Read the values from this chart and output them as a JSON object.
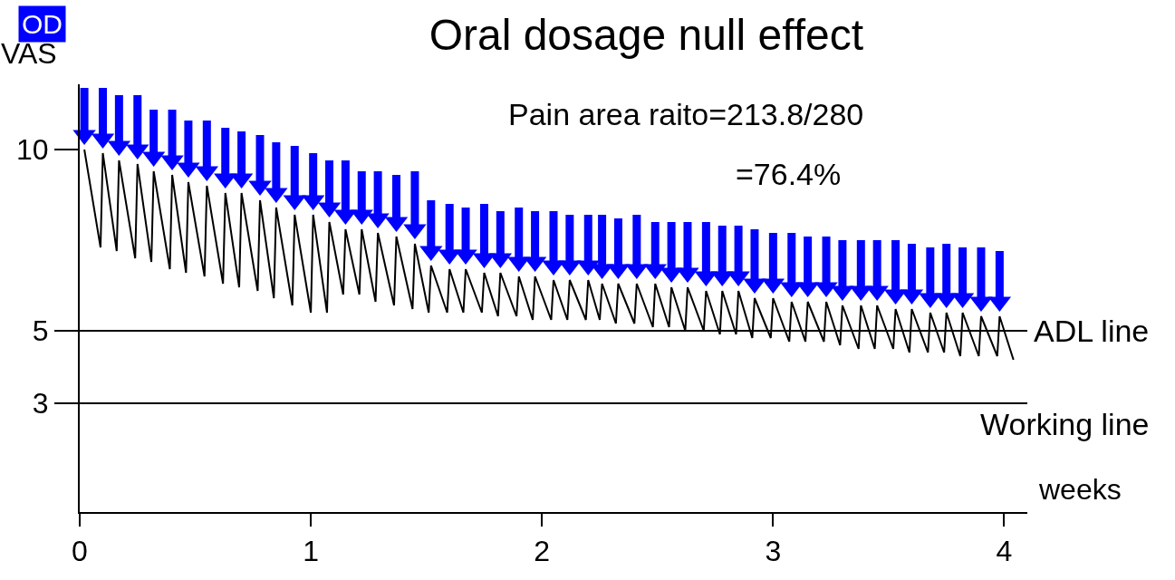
{
  "chart_data": {
    "type": "line",
    "title": "Oral dosage null effect",
    "xlabel": "weeks",
    "ylabel": "VAS",
    "annotations": [
      "OD",
      "Pain area raito=213.8/280",
      "=76.4%"
    ],
    "xlim": [
      0,
      4.1
    ],
    "ylim": [
      0,
      11.8
    ],
    "xticks": [
      0,
      1,
      2,
      3,
      4
    ],
    "yticks": [
      3,
      5,
      10
    ],
    "grid": false,
    "ref_lines": [
      {
        "axis": "y",
        "value": 5,
        "label": "ADL line",
        "color": "#000000"
      },
      {
        "axis": "y",
        "value": 3,
        "label": "Working line",
        "color": "#000000"
      }
    ],
    "series": [
      {
        "type": "line",
        "color": "#000000",
        "marker": "none",
        "line_style": "solid",
        "x": [
          0.02,
          0.09,
          0.1,
          0.16,
          0.17,
          0.24,
          0.25,
          0.31,
          0.32,
          0.39,
          0.4,
          0.46,
          0.47,
          0.54,
          0.55,
          0.62,
          0.63,
          0.69,
          0.7,
          0.77,
          0.78,
          0.84,
          0.85,
          0.92,
          0.93,
          1.0,
          1.01,
          1.07,
          1.08,
          1.14,
          1.15,
          1.21,
          1.22,
          1.28,
          1.29,
          1.36,
          1.37,
          1.44,
          1.45,
          1.51,
          1.52,
          1.59,
          1.6,
          1.66,
          1.67,
          1.74,
          1.75,
          1.81,
          1.82,
          1.89,
          1.9,
          1.96,
          1.97,
          2.04,
          2.05,
          2.11,
          2.12,
          2.19,
          2.2,
          2.25,
          2.26,
          2.32,
          2.33,
          2.4,
          2.41,
          2.48,
          2.49,
          2.55,
          2.56,
          2.62,
          2.63,
          2.7,
          2.71,
          2.77,
          2.78,
          2.84,
          2.85,
          2.91,
          2.92,
          2.99,
          3.0,
          3.07,
          3.08,
          3.14,
          3.15,
          3.22,
          3.23,
          3.29,
          3.3,
          3.37,
          3.38,
          3.44,
          3.45,
          3.52,
          3.53,
          3.59,
          3.6,
          3.67,
          3.68,
          3.74,
          3.75,
          3.81,
          3.82,
          3.89,
          3.9,
          3.97,
          3.98,
          4.04
        ],
        "values": [
          10.0,
          7.3,
          9.9,
          7.2,
          9.7,
          7.0,
          9.6,
          6.9,
          9.4,
          6.7,
          9.3,
          6.6,
          9.1,
          6.5,
          9.0,
          6.3,
          8.8,
          6.2,
          8.8,
          6.1,
          8.6,
          5.9,
          8.4,
          5.7,
          8.2,
          5.5,
          8.2,
          5.5,
          8.0,
          6.0,
          7.8,
          6.0,
          7.8,
          5.8,
          7.7,
          5.7,
          7.6,
          5.6,
          7.4,
          5.5,
          6.8,
          5.5,
          6.7,
          5.5,
          6.7,
          5.5,
          6.6,
          5.4,
          6.6,
          5.4,
          6.5,
          5.3,
          6.5,
          5.3,
          6.4,
          5.3,
          6.4,
          5.3,
          6.4,
          5.3,
          6.3,
          5.2,
          6.3,
          5.2,
          6.3,
          5.1,
          6.3,
          5.1,
          6.2,
          5.0,
          6.2,
          5.0,
          6.1,
          4.9,
          6.1,
          4.9,
          6.1,
          4.8,
          5.9,
          4.8,
          5.9,
          4.7,
          5.8,
          4.7,
          5.8,
          4.7,
          5.8,
          4.6,
          5.7,
          4.5,
          5.7,
          4.5,
          5.7,
          4.5,
          5.6,
          4.4,
          5.6,
          4.4,
          5.5,
          4.4,
          5.5,
          4.3,
          5.5,
          4.3,
          5.4,
          4.3,
          5.4,
          4.2
        ]
      },
      {
        "type": "scatter",
        "color": "#0000ff",
        "marker": "triangle",
        "x": [
          0.02,
          0.1,
          0.17,
          0.25,
          0.32,
          0.4,
          0.47,
          0.55,
          0.63,
          0.7,
          0.78,
          0.85,
          0.93,
          1.01,
          1.08,
          1.15,
          1.22,
          1.29,
          1.37,
          1.45,
          1.52,
          1.6,
          1.67,
          1.75,
          1.82,
          1.9,
          1.97,
          2.05,
          2.12,
          2.2,
          2.26,
          2.33,
          2.41,
          2.49,
          2.56,
          2.63,
          2.71,
          2.78,
          2.85,
          2.92,
          3.0,
          3.08,
          3.15,
          3.23,
          3.3,
          3.38,
          3.45,
          3.53,
          3.6,
          3.68,
          3.75,
          3.82,
          3.9,
          3.98
        ],
        "values": [
          10.4,
          10.3,
          10.1,
          10.0,
          9.8,
          9.7,
          9.5,
          9.4,
          9.2,
          9.2,
          9.0,
          8.8,
          8.6,
          8.6,
          8.4,
          8.2,
          8.2,
          8.1,
          8.0,
          7.8,
          7.2,
          7.1,
          7.1,
          7.0,
          7.0,
          6.9,
          6.9,
          6.8,
          6.8,
          6.8,
          6.7,
          6.7,
          6.7,
          6.7,
          6.6,
          6.6,
          6.5,
          6.5,
          6.5,
          6.3,
          6.3,
          6.2,
          6.2,
          6.2,
          6.1,
          6.1,
          6.1,
          6.0,
          6.0,
          5.9,
          5.9,
          5.9,
          5.8,
          5.8
        ],
        "line_style": "solid"
      },
      {
        "type": "line",
        "color": "#0000ff",
        "marker": "none",
        "line_style": "solid",
        "x": [
          0.02,
          0.02,
          null,
          0.1,
          0.1,
          null,
          0.17,
          0.17,
          null,
          0.25,
          0.25,
          null,
          0.32,
          0.32,
          null,
          0.4,
          0.4,
          null,
          0.47,
          0.47,
          null,
          0.55,
          0.55,
          null,
          0.63,
          0.63,
          null,
          0.7,
          0.7,
          null,
          0.78,
          0.78,
          null,
          0.85,
          0.85,
          null,
          0.93,
          0.93,
          null,
          1.01,
          1.01,
          null,
          1.08,
          1.08,
          null,
          1.15,
          1.15,
          null,
          1.22,
          1.22,
          null,
          1.29,
          1.29,
          null,
          1.37,
          1.37,
          null,
          1.45,
          1.45,
          null,
          1.52,
          1.52,
          null,
          1.6,
          1.6,
          null,
          1.67,
          1.67,
          null,
          1.75,
          1.75,
          null,
          1.82,
          1.82,
          null,
          1.9,
          1.9,
          null,
          1.97,
          1.97,
          null,
          2.05,
          2.05,
          null,
          2.12,
          2.12,
          null,
          2.2,
          2.2,
          null,
          2.26,
          2.26,
          null,
          2.33,
          2.33,
          null,
          2.41,
          2.41,
          null,
          2.49,
          2.49,
          null,
          2.56,
          2.56,
          null,
          2.63,
          2.63,
          null,
          2.71,
          2.71,
          null,
          2.78,
          2.78,
          null,
          2.85,
          2.85,
          null,
          2.92,
          2.92,
          null,
          3.0,
          3.0,
          null,
          3.08,
          3.08,
          null,
          3.15,
          3.15,
          null,
          3.23,
          3.23,
          null,
          3.3,
          3.3,
          null,
          3.38,
          3.38,
          null,
          3.45,
          3.45,
          null,
          3.53,
          3.53,
          null,
          3.6,
          3.6,
          null,
          3.68,
          3.68,
          null,
          3.75,
          3.75,
          null,
          3.82,
          3.82,
          null,
          3.9,
          3.9,
          null,
          3.98,
          3.98
        ],
        "values": [
          10.4,
          11.7,
          null,
          10.3,
          11.7,
          null,
          10.1,
          11.5,
          null,
          10.0,
          11.5,
          null,
          9.8,
          11.1,
          null,
          9.7,
          11.1,
          null,
          9.5,
          10.8,
          null,
          9.4,
          10.8,
          null,
          9.2,
          10.6,
          null,
          9.2,
          10.5,
          null,
          9.0,
          10.4,
          null,
          8.8,
          10.2,
          null,
          8.6,
          10.1,
          null,
          8.6,
          9.9,
          null,
          8.4,
          9.7,
          null,
          8.2,
          9.7,
          null,
          8.2,
          9.4,
          null,
          8.1,
          9.4,
          null,
          8.0,
          9.3,
          null,
          7.8,
          9.4,
          null,
          7.2,
          8.6,
          null,
          7.1,
          8.5,
          null,
          7.1,
          8.4,
          null,
          7.0,
          8.5,
          null,
          7.0,
          8.3,
          null,
          6.9,
          8.4,
          null,
          6.9,
          8.3,
          null,
          6.8,
          8.3,
          null,
          6.8,
          8.2,
          null,
          6.8,
          8.2,
          null,
          6.7,
          8.2,
          null,
          6.7,
          8.1,
          null,
          6.7,
          8.2,
          null,
          6.7,
          8.0,
          null,
          6.6,
          8.0,
          null,
          6.6,
          8.0,
          null,
          6.5,
          8.0,
          null,
          6.5,
          7.9,
          null,
          6.5,
          7.9,
          null,
          6.3,
          7.8,
          null,
          6.3,
          7.7,
          null,
          6.2,
          7.7,
          null,
          6.2,
          7.6,
          null,
          6.2,
          7.6,
          null,
          6.1,
          7.5,
          null,
          6.1,
          7.5,
          null,
          6.1,
          7.5,
          null,
          6.0,
          7.5,
          null,
          6.0,
          7.4,
          null,
          5.9,
          7.3,
          null,
          5.9,
          7.4,
          null,
          5.9,
          7.3,
          null,
          5.8,
          7.3,
          null,
          5.8,
          7.2
        ]
      }
    ]
  }
}
